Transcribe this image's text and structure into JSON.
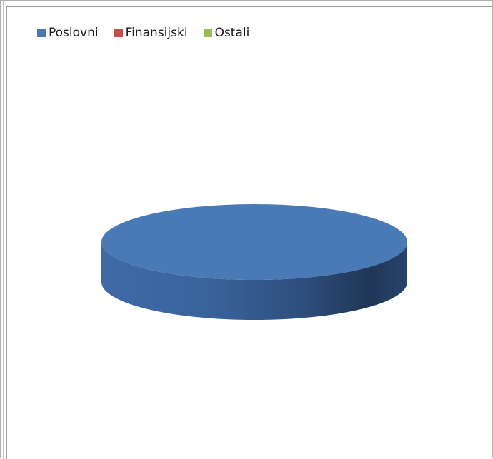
{
  "chart_data": {
    "type": "pie",
    "style": "3d",
    "title": "",
    "legend_position": "top-left",
    "series": [
      {
        "name": "Poslovni",
        "value": 100,
        "color": "#4a7ab5"
      },
      {
        "name": "Finansijski",
        "value": 0,
        "color": "#c0504d"
      },
      {
        "name": "Ostali",
        "value": 0,
        "color": "#9bbb59"
      }
    ]
  }
}
